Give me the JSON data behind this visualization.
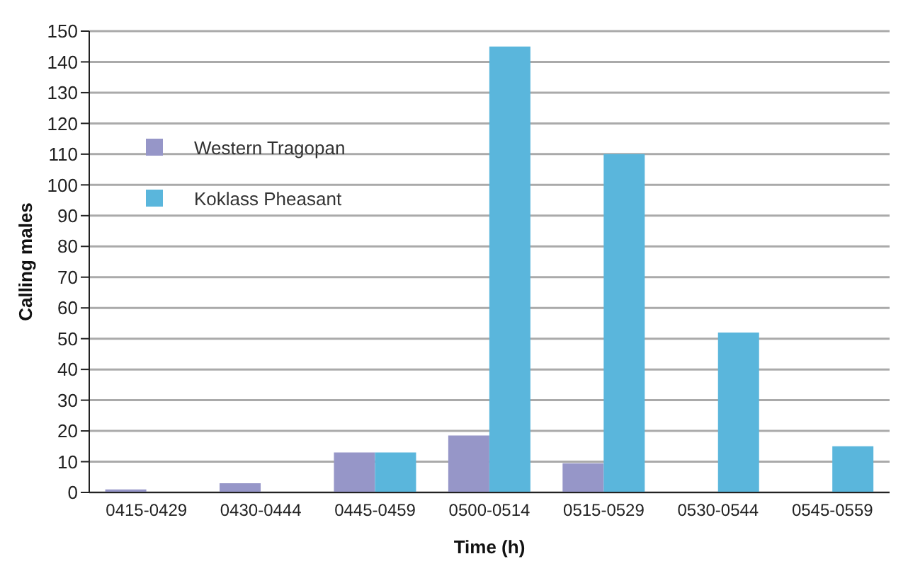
{
  "chart_data": {
    "type": "bar",
    "xlabel": "Time (h)",
    "ylabel": "Calling males",
    "categories": [
      "0415-0429",
      "0430-0444",
      "0445-0459",
      "0500-0514",
      "0515-0529",
      "0530-0544",
      "0545-0559"
    ],
    "series": [
      {
        "name": "Western Tragopan",
        "color": "#9696c8",
        "values": [
          1,
          3,
          13,
          18.5,
          9.5,
          0,
          0
        ]
      },
      {
        "name": "Koklass Pheasant",
        "color": "#5ab6dc",
        "values": [
          0,
          0,
          13,
          145,
          110,
          52,
          15
        ]
      }
    ],
    "ylim": [
      0,
      150
    ],
    "yticks": [
      0,
      10,
      20,
      30,
      40,
      50,
      60,
      70,
      80,
      90,
      100,
      110,
      120,
      130,
      140,
      150
    ],
    "grid": "y",
    "legend": "top left"
  }
}
